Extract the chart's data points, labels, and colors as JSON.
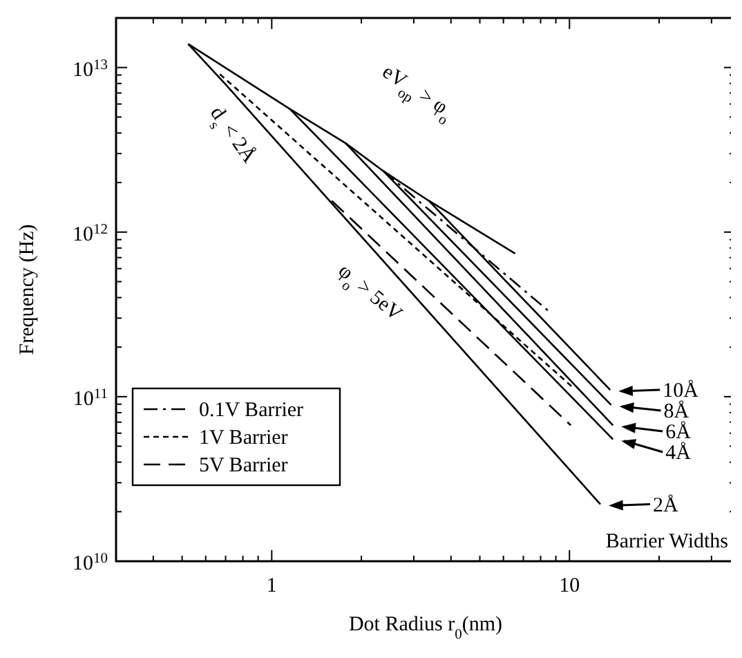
{
  "chart_data": {
    "type": "line",
    "xlabel": "Dot Radius r$_{0}$(nm)",
    "ylabel": "Frequency (Hz)",
    "log": "xy",
    "xlim": [
      0.3,
      36
    ],
    "ylim": [
      10000000000.0,
      20000000000000.0
    ],
    "xticks": [
      1,
      10
    ],
    "yticks": [
      {
        "value": 10000000000.0,
        "label": "10$^{10}$"
      },
      {
        "value": 100000000000.0,
        "label": "10$^{11}$"
      },
      {
        "value": 1000000000000.0,
        "label": "10$^{12}$"
      },
      {
        "value": 10000000000000.0,
        "label": "10$^{13}$"
      }
    ],
    "grid": false,
    "legend": "bottom left",
    "marker": "none",
    "series": [
      {
        "color": "#000000",
        "line_style": "solid",
        "x": [
          0.524,
          1.15,
          1.77,
          2.37,
          3.37,
          6.57
        ],
        "values": [
          13900000000000.0,
          5600000000000.0,
          3470000000000.0,
          2350000000000.0,
          1550000000000.0,
          740000000000.0
        ]
      },
      {
        "name": "10Å",
        "color": "#000000",
        "line_style": "solid",
        "x": [
          3.37,
          13.7
        ],
        "values": [
          1550000000000.0,
          110000000000.0
        ]
      },
      {
        "name": "8Å",
        "color": "#000000",
        "line_style": "solid",
        "x": [
          2.37,
          13.8
        ],
        "values": [
          2350000000000.0,
          89000000000.0
        ]
      },
      {
        "name": "6Å",
        "color": "#000000",
        "line_style": "solid",
        "x": [
          1.77,
          14.0
        ],
        "values": [
          3470000000000.0,
          67000000000.0
        ]
      },
      {
        "name": "4Å",
        "color": "#000000",
        "line_style": "solid",
        "x": [
          1.15,
          14.0
        ],
        "values": [
          5600000000000.0,
          55000000000.0
        ]
      },
      {
        "name": "2Å",
        "color": "#000000",
        "line_style": "solid",
        "x": [
          0.524,
          0.7,
          12.7
        ],
        "values": [
          13900000000000.0,
          7900000000000.0,
          22200000000.0
        ]
      },
      {
        "name": "0.1V Barrier",
        "color": "#000000",
        "line_style": "dashdot",
        "x": [
          2.37,
          8.7
        ],
        "values": [
          2350000000000.0,
          320000000000.0
        ]
      },
      {
        "name": "1V Barrier",
        "color": "#000000",
        "line_style": "dotted",
        "x": [
          0.67,
          10.2
        ],
        "values": [
          9100000000000.0,
          115000000000.0
        ]
      },
      {
        "name": "5V Barrier",
        "color": "#000000",
        "line_style": "dashed",
        "x": [
          1.59,
          10.1
        ],
        "values": [
          1550000000000.0,
          67000000000.0
        ]
      }
    ],
    "annotations": [
      "eV$_{op}$ > φ$_{o}$",
      "d$_{s}$ < 2Å",
      "φ$_{o}$ > 5eV",
      "Barrier Widths"
    ]
  }
}
